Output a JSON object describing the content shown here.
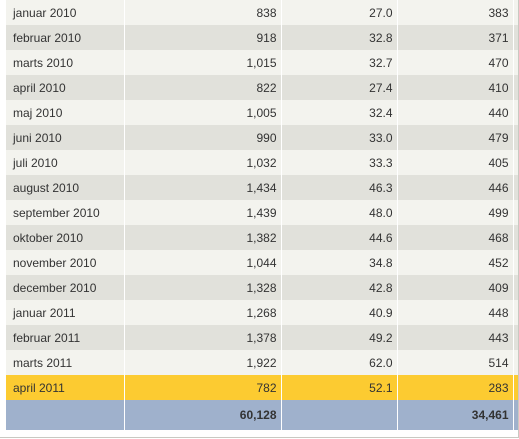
{
  "rows": [
    {
      "month": "januar 2010",
      "a": "838",
      "b": "27.0",
      "c": "383"
    },
    {
      "month": "februar 2010",
      "a": "918",
      "b": "32.8",
      "c": "371"
    },
    {
      "month": "marts 2010",
      "a": "1,015",
      "b": "32.7",
      "c": "470"
    },
    {
      "month": "april 2010",
      "a": "822",
      "b": "27.4",
      "c": "410"
    },
    {
      "month": "maj 2010",
      "a": "1,005",
      "b": "32.4",
      "c": "440"
    },
    {
      "month": "juni 2010",
      "a": "990",
      "b": "33.0",
      "c": "479"
    },
    {
      "month": "juli 2010",
      "a": "1,032",
      "b": "33.3",
      "c": "405"
    },
    {
      "month": "august 2010",
      "a": "1,434",
      "b": "46.3",
      "c": "446"
    },
    {
      "month": "september 2010",
      "a": "1,439",
      "b": "48.0",
      "c": "499"
    },
    {
      "month": "oktober 2010",
      "a": "1,382",
      "b": "44.6",
      "c": "468"
    },
    {
      "month": "november 2010",
      "a": "1,044",
      "b": "34.8",
      "c": "452"
    },
    {
      "month": "december 2010",
      "a": "1,328",
      "b": "42.8",
      "c": "409"
    },
    {
      "month": "januar 2011",
      "a": "1,268",
      "b": "40.9",
      "c": "448"
    },
    {
      "month": "februar 2011",
      "a": "1,378",
      "b": "49.2",
      "c": "443"
    },
    {
      "month": "marts 2011",
      "a": "1,922",
      "b": "62.0",
      "c": "514"
    },
    {
      "month": "april 2011",
      "a": "782",
      "b": "52.1",
      "c": "283"
    }
  ],
  "highlighted_row": "april 2011",
  "totals": {
    "month": "",
    "a": "60,128",
    "b": "",
    "c": "34,461"
  },
  "colors": {
    "row_light": "#f3f3ee",
    "row_dark": "#e1e1db",
    "highlight": "#fccb31",
    "total_row": "#9fb1cc"
  }
}
